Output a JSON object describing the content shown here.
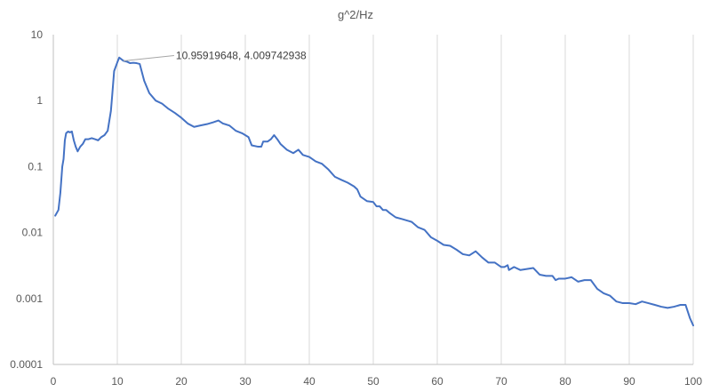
{
  "chart_data": {
    "type": "line",
    "title": "g^2/Hz",
    "xlabel": "",
    "ylabel": "",
    "xlim": [
      0,
      100
    ],
    "ylim": [
      0.0001,
      10
    ],
    "y_scale": "log",
    "grid": "vertical",
    "legend": "none",
    "x_ticks": [
      "0",
      "10",
      "20",
      "30",
      "40",
      "50",
      "60",
      "70",
      "80",
      "90",
      "100"
    ],
    "x_tick_values": [
      0,
      10,
      20,
      30,
      40,
      50,
      60,
      70,
      80,
      90,
      100
    ],
    "y_ticks": [
      "10",
      "1",
      "0.1",
      "0.01",
      "0.001",
      "0.0001"
    ],
    "y_tick_values": [
      10,
      1,
      0.1,
      0.01,
      0.001,
      0.0001
    ],
    "series": [
      {
        "color": "#4472c4",
        "points": [
          [
            0.3,
            0.018
          ],
          [
            0.8,
            0.022
          ],
          [
            1.1,
            0.04
          ],
          [
            1.4,
            0.1
          ],
          [
            1.6,
            0.13
          ],
          [
            1.8,
            0.25
          ],
          [
            2.0,
            0.32
          ],
          [
            2.3,
            0.34
          ],
          [
            2.6,
            0.33
          ],
          [
            2.9,
            0.34
          ],
          [
            3.2,
            0.25
          ],
          [
            3.5,
            0.2
          ],
          [
            3.8,
            0.17
          ],
          [
            4.2,
            0.2
          ],
          [
            4.6,
            0.22
          ],
          [
            5.0,
            0.26
          ],
          [
            5.5,
            0.26
          ],
          [
            6.0,
            0.27
          ],
          [
            6.5,
            0.26
          ],
          [
            7.0,
            0.25
          ],
          [
            7.5,
            0.28
          ],
          [
            8.0,
            0.3
          ],
          [
            8.5,
            0.35
          ],
          [
            9.0,
            0.7
          ],
          [
            9.2,
            1.2
          ],
          [
            9.5,
            2.8
          ],
          [
            10.0,
            3.8
          ],
          [
            10.3,
            4.5
          ],
          [
            10.96,
            4.01
          ],
          [
            11.5,
            3.9
          ],
          [
            12.0,
            3.7
          ],
          [
            12.5,
            3.75
          ],
          [
            13.0,
            3.7
          ],
          [
            13.5,
            3.6
          ],
          [
            14.2,
            2.0
          ],
          [
            15.0,
            1.3
          ],
          [
            16.0,
            1.0
          ],
          [
            17.0,
            0.9
          ],
          [
            18.0,
            0.75
          ],
          [
            19.0,
            0.65
          ],
          [
            20.0,
            0.55
          ],
          [
            21.0,
            0.45
          ],
          [
            22.0,
            0.4
          ],
          [
            23.0,
            0.42
          ],
          [
            24.0,
            0.44
          ],
          [
            25.0,
            0.47
          ],
          [
            25.8,
            0.5
          ],
          [
            26.5,
            0.45
          ],
          [
            27.5,
            0.42
          ],
          [
            28.5,
            0.35
          ],
          [
            29.5,
            0.32
          ],
          [
            30.5,
            0.28
          ],
          [
            31.0,
            0.21
          ],
          [
            32.0,
            0.2
          ],
          [
            32.5,
            0.2
          ],
          [
            32.8,
            0.24
          ],
          [
            33.5,
            0.24
          ],
          [
            34.0,
            0.26
          ],
          [
            34.5,
            0.3
          ],
          [
            35.0,
            0.26
          ],
          [
            35.5,
            0.22
          ],
          [
            36.5,
            0.18
          ],
          [
            37.5,
            0.16
          ],
          [
            38.3,
            0.18
          ],
          [
            39.0,
            0.15
          ],
          [
            40.0,
            0.14
          ],
          [
            41.0,
            0.12
          ],
          [
            42.0,
            0.11
          ],
          [
            43.0,
            0.09
          ],
          [
            44.0,
            0.07
          ],
          [
            45.0,
            0.063
          ],
          [
            46.0,
            0.057
          ],
          [
            47.0,
            0.05
          ],
          [
            47.5,
            0.045
          ],
          [
            48.0,
            0.035
          ],
          [
            49.0,
            0.03
          ],
          [
            50.0,
            0.029
          ],
          [
            50.5,
            0.025
          ],
          [
            51.0,
            0.025
          ],
          [
            51.5,
            0.022
          ],
          [
            52.0,
            0.022
          ],
          [
            52.5,
            0.02
          ],
          [
            53.5,
            0.017
          ],
          [
            54.5,
            0.016
          ],
          [
            55.5,
            0.015
          ],
          [
            56.0,
            0.0145
          ],
          [
            57.0,
            0.012
          ],
          [
            58.0,
            0.011
          ],
          [
            59.0,
            0.0085
          ],
          [
            60.0,
            0.0075
          ],
          [
            61.0,
            0.0065
          ],
          [
            62.0,
            0.0063
          ],
          [
            63.0,
            0.0055
          ],
          [
            64.0,
            0.0047
          ],
          [
            65.0,
            0.0045
          ],
          [
            66.0,
            0.0052
          ],
          [
            67.0,
            0.0042
          ],
          [
            68.0,
            0.0035
          ],
          [
            69.0,
            0.0035
          ],
          [
            70.0,
            0.003
          ],
          [
            70.5,
            0.003
          ],
          [
            71.0,
            0.0032
          ],
          [
            71.2,
            0.0027
          ],
          [
            72.0,
            0.003
          ],
          [
            73.0,
            0.0027
          ],
          [
            74.0,
            0.0028
          ],
          [
            75.0,
            0.0029
          ],
          [
            76.0,
            0.0023
          ],
          [
            77.0,
            0.0022
          ],
          [
            78.0,
            0.0022
          ],
          [
            78.5,
            0.0019
          ],
          [
            79.0,
            0.002
          ],
          [
            80.0,
            0.002
          ],
          [
            81.0,
            0.0021
          ],
          [
            82.0,
            0.0018
          ],
          [
            83.0,
            0.0019
          ],
          [
            84.0,
            0.0019
          ],
          [
            85.0,
            0.0014
          ],
          [
            86.0,
            0.0012
          ],
          [
            87.0,
            0.0011
          ],
          [
            88.0,
            0.0009
          ],
          [
            89.0,
            0.00085
          ],
          [
            90.0,
            0.00085
          ],
          [
            91.0,
            0.00082
          ],
          [
            92.0,
            0.0009
          ],
          [
            93.0,
            0.00085
          ],
          [
            94.0,
            0.0008
          ],
          [
            95.0,
            0.00075
          ],
          [
            96.0,
            0.00072
          ],
          [
            97.0,
            0.00075
          ],
          [
            98.0,
            0.0008
          ],
          [
            98.8,
            0.0008
          ],
          [
            99.5,
            0.0005
          ],
          [
            100.0,
            0.00039
          ]
        ]
      }
    ],
    "annotations": [
      {
        "text": "10.95919648, 4.009742938",
        "x": 10.95919648,
        "y": 4.009742938
      }
    ]
  }
}
